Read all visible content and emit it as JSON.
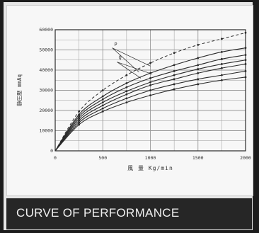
{
  "caption": "CURVE OF PERFORMANCE",
  "chart_data": {
    "type": "line",
    "title": "",
    "xlabel": "風 量 Kg/min",
    "ylabel": "静圧壓 mmAq",
    "xlim": [
      0,
      2000
    ],
    "ylim": [
      0,
      60000
    ],
    "grid": true,
    "x_ticks": [
      "0",
      "500",
      "1000",
      "1500",
      "2000"
    ],
    "y_ticks": [
      "0",
      "10000",
      "20000",
      "30000",
      "40000",
      "50000",
      "60000"
    ],
    "annotations": [
      "P",
      "Q"
    ],
    "series": [
      {
        "values": [
          [
            0,
            0
          ],
          [
            250,
            18000
          ],
          [
            500,
            27000
          ],
          [
            750,
            33500
          ],
          [
            1000,
            38500
          ],
          [
            1250,
            42500
          ],
          [
            1500,
            46000
          ],
          [
            1750,
            49000
          ],
          [
            2000,
            51000
          ]
        ]
      },
      {
        "values": [
          [
            0,
            0
          ],
          [
            250,
            17000
          ],
          [
            500,
            25500
          ],
          [
            750,
            31500
          ],
          [
            1000,
            36000
          ],
          [
            1250,
            39500
          ],
          [
            1500,
            42500
          ],
          [
            1750,
            45500
          ],
          [
            2000,
            47500
          ]
        ]
      },
      {
        "values": [
          [
            0,
            0
          ],
          [
            250,
            16000
          ],
          [
            500,
            24000
          ],
          [
            750,
            29500
          ],
          [
            1000,
            34000
          ],
          [
            1250,
            37500
          ],
          [
            1500,
            40500
          ],
          [
            1750,
            43000
          ],
          [
            2000,
            45000
          ]
        ]
      },
      {
        "values": [
          [
            0,
            0
          ],
          [
            250,
            15000
          ],
          [
            500,
            22500
          ],
          [
            750,
            28000
          ],
          [
            1000,
            32500
          ],
          [
            1250,
            35500
          ],
          [
            1500,
            38500
          ],
          [
            1750,
            41000
          ],
          [
            2000,
            43000
          ]
        ]
      },
      {
        "values": [
          [
            0,
            0
          ],
          [
            250,
            14000
          ],
          [
            500,
            21000
          ],
          [
            750,
            26000
          ],
          [
            1000,
            30000
          ],
          [
            1250,
            33000
          ],
          [
            1500,
            35500
          ],
          [
            1750,
            37500
          ],
          [
            2000,
            39500
          ]
        ]
      },
      {
        "values": [
          [
            0,
            0
          ],
          [
            250,
            13000
          ],
          [
            500,
            19500
          ],
          [
            750,
            24000
          ],
          [
            1000,
            27500
          ],
          [
            1250,
            30500
          ],
          [
            1500,
            33000
          ],
          [
            1750,
            35000
          ],
          [
            2000,
            36500
          ]
        ]
      },
      {
        "values": [
          [
            0,
            0
          ],
          [
            250,
            19500
          ],
          [
            500,
            30000
          ],
          [
            750,
            37500
          ],
          [
            1000,
            43500
          ],
          [
            1250,
            48500
          ],
          [
            1500,
            52500
          ],
          [
            1750,
            55500
          ],
          [
            2000,
            58500
          ]
        ],
        "dashed": true
      }
    ],
    "colors": {
      "curves": "#2a2a2a",
      "grid": "#9a9a9a",
      "axis": "#2a2a2a"
    }
  }
}
